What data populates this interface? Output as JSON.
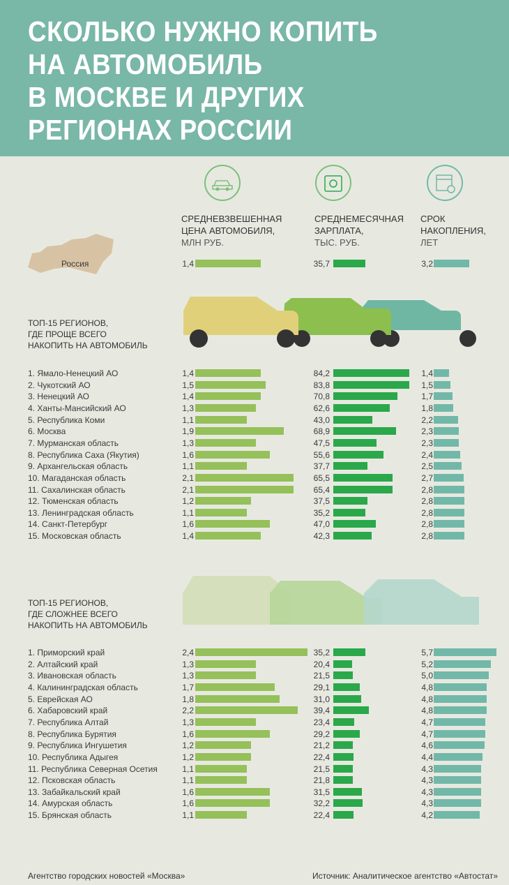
{
  "title": "СКОЛЬКО НУЖНО КОПИТЬ\nНА АВТОМОБИЛЬ\nВ МОСКВЕ И ДРУГИХ\nРЕГИОНАХ РОССИИ",
  "columns": [
    {
      "label": "СРЕДНЕВЗВЕШЕННАЯ\nЦЕНА АВТОМОБИЛЯ,",
      "unit": "МЛН РУБ.",
      "icon": "car-icon"
    },
    {
      "label": "СРЕДНЕМЕСЯЧНАЯ\nЗАРПЛАТА,",
      "unit": "ТЫС. РУБ.",
      "icon": "wallet-icon"
    },
    {
      "label": "СРОК\nНАКОПЛЕНИЯ,",
      "unit": "ЛЕТ",
      "icon": "calendar-icon"
    }
  ],
  "colors": {
    "price": "#95c05a",
    "salary": "#2aa84a",
    "term": "#72b8a8",
    "header": "#79b7a6"
  },
  "russia": {
    "label": "Россия",
    "price": 1.4,
    "price_text": "1,4",
    "salary": 35.7,
    "salary_text": "35,7",
    "term": 3.2,
    "term_text": "3,2"
  },
  "chart_data": {
    "type": "bar",
    "series_names": [
      "Средневзвешенная цена автомобиля, млн руб.",
      "Среднемесячная зарплата, тыс. руб.",
      "Срок накопления, лет"
    ],
    "sections": [
      {
        "title": "ТОП-15 РЕГИОНОВ,\nГДЕ ПРОЩЕ ВСЕГО\nНАКОПИТЬ НА АВТОМОБИЛЬ",
        "rows": [
          [
            "1. Ямало-Ненецкий АО",
            1.4,
            84.2,
            1.4
          ],
          [
            "2. Чукотский АО",
            1.5,
            83.8,
            1.5
          ],
          [
            "3. Ненецкий АО",
            1.4,
            70.8,
            1.7
          ],
          [
            "4. Ханты-Мансийский АО",
            1.3,
            62.6,
            1.8
          ],
          [
            "5. Республика Коми",
            1.1,
            43.0,
            2.2
          ],
          [
            "6. Москва",
            1.9,
            68.9,
            2.3
          ],
          [
            "7. Мурманская область",
            1.3,
            47.5,
            2.3
          ],
          [
            "8. Республика Саха (Якутия)",
            1.6,
            55.6,
            2.4
          ],
          [
            "9. Архангельская область",
            1.1,
            37.7,
            2.5
          ],
          [
            "10. Магаданская область",
            2.1,
            65.5,
            2.7
          ],
          [
            "11. Сахалинская область",
            2.1,
            65.4,
            2.8
          ],
          [
            "12. Тюменская область",
            1.2,
            37.5,
            2.8
          ],
          [
            "13. Ленинградская область",
            1.1,
            35.2,
            2.8
          ],
          [
            "14. Санкт-Петербург",
            1.6,
            47.0,
            2.8
          ],
          [
            "15. Московская область",
            1.4,
            42.3,
            2.8
          ]
        ]
      },
      {
        "title": "ТОП-15 РЕГИОНОВ,\nГДЕ СЛОЖНЕЕ ВСЕГО\nНАКОПИТЬ НА АВТОМОБИЛЬ",
        "rows": [
          [
            "1. Приморский край",
            2.4,
            35.2,
            5.7
          ],
          [
            "2. Алтайский край",
            1.3,
            20.4,
            5.2
          ],
          [
            "3. Ивановская область",
            1.3,
            21.5,
            5.0
          ],
          [
            "4. Калининградская область",
            1.7,
            29.1,
            4.8
          ],
          [
            "5. Еврейская АО",
            1.8,
            31.0,
            4.8
          ],
          [
            "6. Хабаровский край",
            2.2,
            39.4,
            4.8
          ],
          [
            "7. Республика Алтай",
            1.3,
            23.4,
            4.7
          ],
          [
            "8. Республика Бурятия",
            1.6,
            29.2,
            4.7
          ],
          [
            "9. Республика Ингушетия",
            1.2,
            21.2,
            4.6
          ],
          [
            "10. Республика Адыгея",
            1.2,
            22.4,
            4.4
          ],
          [
            "11. Республика Северная Осетия",
            1.1,
            21.5,
            4.3
          ],
          [
            "12. Псковская область",
            1.1,
            21.8,
            4.3
          ],
          [
            "13. Забайкальский край",
            1.6,
            31.5,
            4.3
          ],
          [
            "14. Амурская область",
            1.6,
            32.2,
            4.3
          ],
          [
            "15. Брянская область",
            1.1,
            22.4,
            4.2
          ]
        ]
      }
    ]
  },
  "footer": {
    "left": "Агентство городских новостей «Москва»",
    "right": "Источник: Аналитическое агентство «Автостат»"
  }
}
